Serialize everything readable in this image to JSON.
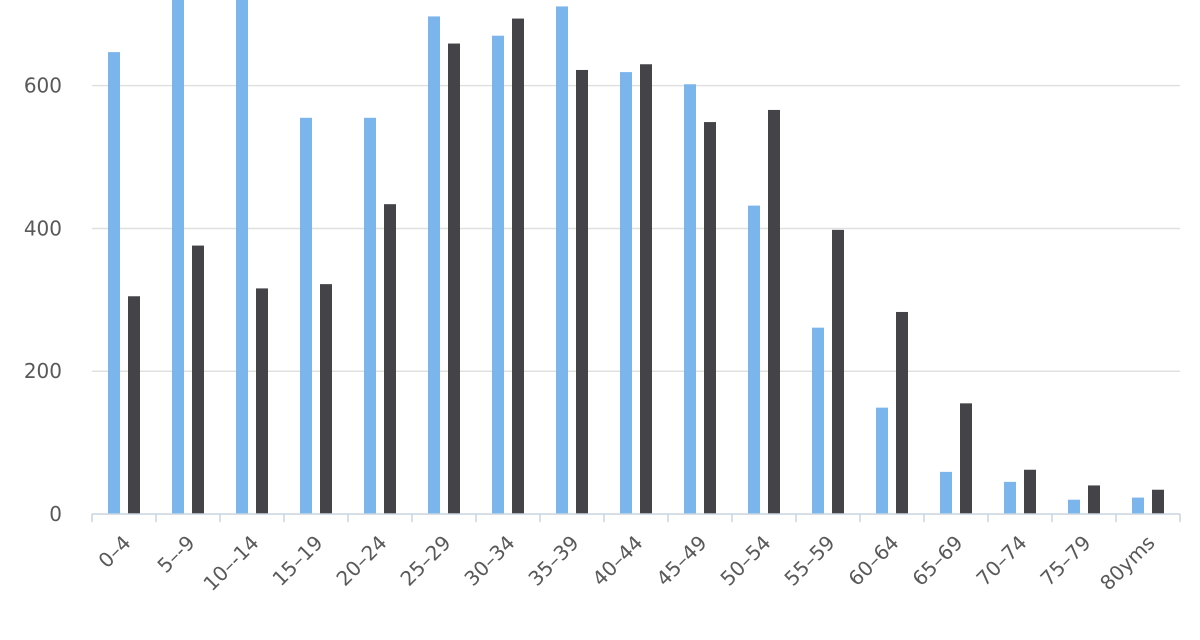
{
  "chart_data": {
    "type": "bar",
    "categories": [
      "0–4",
      "5–-9",
      "10–-14",
      "15–19",
      "20–24",
      "25–29",
      "30–34",
      "35–39",
      "40–44",
      "45–49",
      "50–54",
      "55–59",
      "60–64",
      "65–69",
      "70–74",
      "75–79",
      "80yms"
    ],
    "series": [
      {
        "color": "#7cb5ec",
        "values": [
          647,
          750,
          745,
          555,
          555,
          697,
          670,
          711,
          619,
          602,
          432,
          261,
          149,
          59,
          45,
          20,
          23
        ]
      },
      {
        "color": "#434348",
        "values": [
          305,
          376,
          316,
          322,
          434,
          659,
          694,
          622,
          630,
          549,
          566,
          398,
          283,
          155,
          62,
          40,
          34
        ]
      }
    ],
    "yticks": [
      0,
      200,
      400,
      600
    ],
    "ylim": [
      0,
      720
    ],
    "grid": true,
    "title": "",
    "xlabel": "",
    "ylabel": ""
  }
}
